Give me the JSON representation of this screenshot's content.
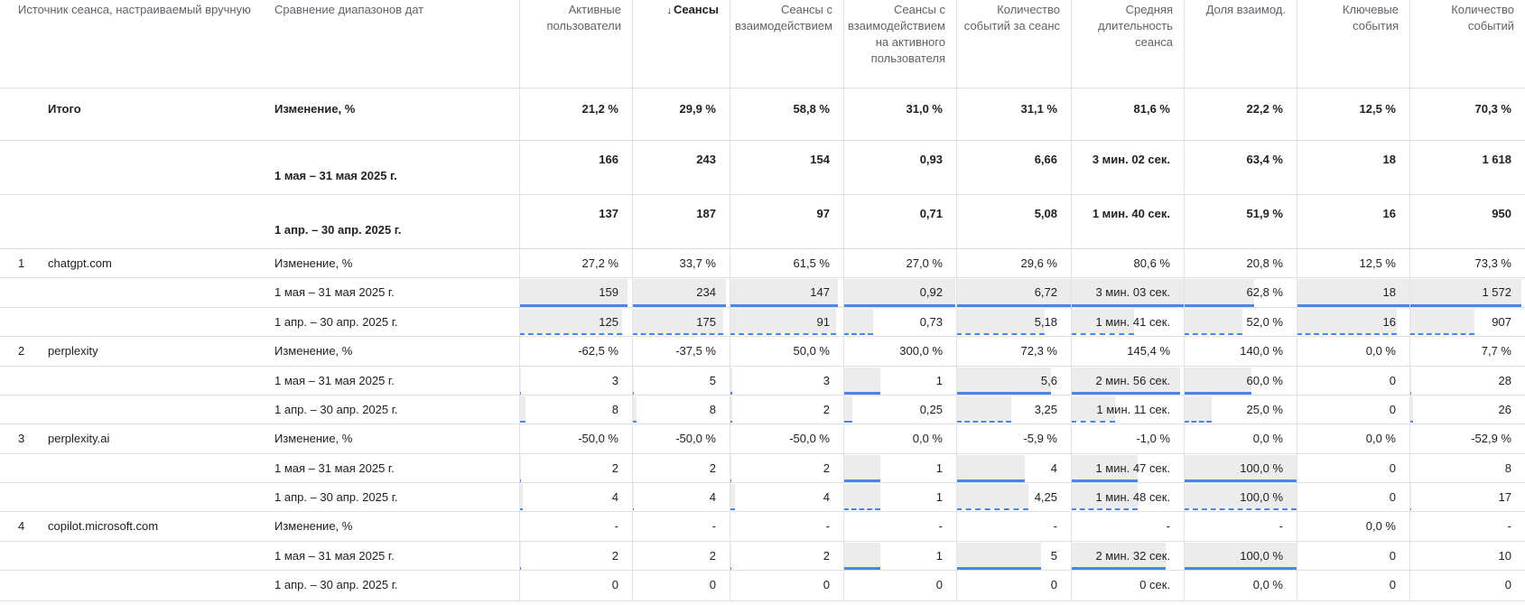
{
  "headers": [
    {
      "label": "Источник сеанса, настраиваемый вручную"
    },
    {
      "label": "Сравнение диапазонов дат"
    },
    {
      "label": "Активные пользователи"
    },
    {
      "label": "Сеансы"
    },
    {
      "label": "Сеансы с взаимодействием"
    },
    {
      "label": "Сеансы с взаимодействием на активного пользователя"
    },
    {
      "label": "Количество событий за сеанс"
    },
    {
      "label": "Средняя длительность сеанса"
    },
    {
      "label": "Доля взаимод."
    },
    {
      "label": "Ключевые события"
    },
    {
      "label": "Количество событий"
    }
  ],
  "sort": {
    "column": "Сеансы",
    "direction": "desc",
    "arrow": "↓"
  },
  "totals": {
    "label": "Итого",
    "rows": [
      {
        "period": "Изменение, %",
        "values": [
          "21,2 %",
          "29,9 %",
          "58,8 %",
          "31,0 %",
          "31,1 %",
          "81,6 %",
          "22,2 %",
          "12,5 %",
          "70,3 %"
        ]
      },
      {
        "period": "1 мая – 31 мая 2025 г.",
        "values": [
          "166",
          "243",
          "154",
          "0,93",
          "6,66",
          "3 мин. 02 сек.",
          "63,4 %",
          "18",
          "1 618"
        ]
      },
      {
        "period": "1 апр. – 30 апр. 2025 г.",
        "values": [
          "137",
          "187",
          "97",
          "0,71",
          "5,08",
          "1 мин. 40 сек.",
          "51,9 %",
          "16",
          "950"
        ]
      }
    ]
  },
  "groups": [
    {
      "index": "1",
      "source": "chatgpt.com",
      "rows": [
        {
          "period": "Изменение, %",
          "values": [
            "27,2 %",
            "33,7 %",
            "61,5 %",
            "27,0 %",
            "29,6 %",
            "80,6 %",
            "20,8 %",
            "12,5 %",
            "73,3 %"
          ]
        },
        {
          "period": "1 мая – 31 мая 2025 г.",
          "values": [
            "159",
            "234",
            "147",
            "0,92",
            "6,72",
            "3 мин. 03 сек.",
            "62,8 %",
            "18",
            "1 572"
          ],
          "shares": [
            0.958,
            0.963,
            0.955,
            0.989,
            1.0,
            1.0,
            0.62,
            1.0,
            0.972
          ]
        },
        {
          "period": "1 апр. – 30 апр. 2025 г.",
          "values": [
            "125",
            "175",
            "91",
            "0,73",
            "5,18",
            "1 мин. 41 сек.",
            "52,0 %",
            "16",
            "907"
          ],
          "shares": [
            0.912,
            0.936,
            0.938,
            0.26,
            0.77,
            0.56,
            0.52,
            0.89,
            0.56
          ]
        }
      ]
    },
    {
      "index": "2",
      "source": "perplexity",
      "rows": [
        {
          "period": "Изменение, %",
          "values": [
            "-62,5 %",
            "-37,5 %",
            "50,0 %",
            "300,0 %",
            "72,3 %",
            "145,4 %",
            "140,0 %",
            "0,0 %",
            "7,7 %"
          ]
        },
        {
          "period": "1 мая – 31 мая 2025 г.",
          "values": [
            "3",
            "5",
            "3",
            "1",
            "5,6",
            "2 мин. 56 сек.",
            "60,0 %",
            "0",
            "28"
          ],
          "shares": [
            0.018,
            0.021,
            0.02,
            0.33,
            0.83,
            0.97,
            0.6,
            0.0,
            0.017
          ]
        },
        {
          "period": "1 апр. – 30 апр. 2025 г.",
          "values": [
            "8",
            "8",
            "2",
            "0,25",
            "3,25",
            "1 мин. 11 сек.",
            "25,0 %",
            "0",
            "26"
          ],
          "shares": [
            0.058,
            0.045,
            0.022,
            0.08,
            0.48,
            0.39,
            0.25,
            0.0,
            0.028
          ]
        }
      ]
    },
    {
      "index": "3",
      "source": "perplexity.ai",
      "rows": [
        {
          "period": "Изменение, %",
          "values": [
            "-50,0 %",
            "-50,0 %",
            "-50,0 %",
            "0,0 %",
            "-5,9 %",
            "-1,0 %",
            "0,0 %",
            "0,0 %",
            "-52,9 %"
          ]
        },
        {
          "period": "1 мая – 31 мая 2025 г.",
          "values": [
            "2",
            "2",
            "2",
            "1",
            "4",
            "1 мин. 47 сек.",
            "100,0 %",
            "0",
            "8"
          ],
          "shares": [
            0.012,
            0.009,
            0.014,
            0.33,
            0.6,
            0.59,
            1.0,
            0.0,
            0.005
          ]
        },
        {
          "period": "1 апр. – 30 апр. 2025 г.",
          "values": [
            "4",
            "4",
            "4",
            "1",
            "4,25",
            "1 мин. 48 сек.",
            "100,0 %",
            "0",
            "17"
          ],
          "shares": [
            0.029,
            0.023,
            0.044,
            0.33,
            0.63,
            0.59,
            1.0,
            0.0,
            0.019
          ]
        }
      ]
    },
    {
      "index": "4",
      "source": "copilot.microsoft.com",
      "rows": [
        {
          "period": "Изменение, %",
          "values": [
            "-",
            "-",
            "-",
            "-",
            "-",
            "-",
            "-",
            "0,0 %",
            "-"
          ]
        },
        {
          "period": "1 мая – 31 мая 2025 г.",
          "values": [
            "2",
            "2",
            "2",
            "1",
            "5",
            "2 мин. 32 сек.",
            "100,0 %",
            "0",
            "10"
          ],
          "shares": [
            0.012,
            0.009,
            0.014,
            0.33,
            0.74,
            0.84,
            1.0,
            0.0,
            0.006
          ]
        },
        {
          "period": "1 апр. – 30 апр. 2025 г.",
          "values": [
            "0",
            "0",
            "0",
            "0",
            "0",
            "0 сек.",
            "0,0 %",
            "0",
            "0"
          ],
          "shares": [
            0,
            0,
            0,
            0,
            0,
            0,
            0,
            0,
            0
          ]
        }
      ]
    }
  ],
  "colors": {
    "bar_fill": "#ececec",
    "current_line": "#4a86e8",
    "previous_line_dashed": "#4a86e8",
    "grid": "#e0e0e0"
  }
}
